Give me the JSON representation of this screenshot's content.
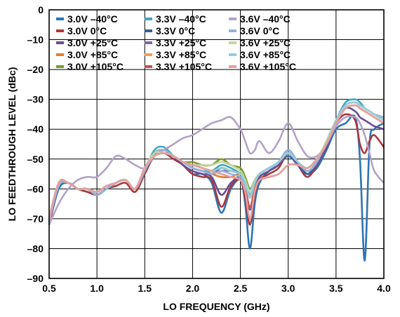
{
  "chart_data": {
    "type": "line",
    "title": "",
    "xlabel": "LO FREQUENCY (GHz)",
    "ylabel": "LO FEEDTHROUGH LEVEL (dBc)",
    "xlim": [
      0.5,
      4.0
    ],
    "ylim": [
      -90,
      0
    ],
    "xticks": [
      "0.5",
      "1.0",
      "1.5",
      "2.0",
      "2.5",
      "3.0",
      "3.5",
      "4.0"
    ],
    "yticks": [
      "0",
      "–10",
      "–20",
      "–30",
      "–40",
      "–50",
      "–60",
      "–70",
      "–80",
      "–90"
    ],
    "grid": true,
    "legend_position": "top-left",
    "x": [
      0.5,
      0.6,
      0.7,
      0.8,
      0.9,
      1.0,
      1.1,
      1.2,
      1.3,
      1.4,
      1.5,
      1.6,
      1.7,
      1.8,
      1.9,
      2.0,
      2.1,
      2.2,
      2.3,
      2.4,
      2.5,
      2.55,
      2.6,
      2.65,
      2.7,
      2.8,
      2.9,
      3.0,
      3.1,
      3.2,
      3.3,
      3.4,
      3.5,
      3.6,
      3.7,
      3.75,
      3.8,
      3.85,
      3.9,
      4.0
    ],
    "series": [
      {
        "name": "3.0V –40°C",
        "color": "#2e74b5",
        "values": [
          -72,
          -60,
          -58,
          -60,
          -61,
          -62,
          -60,
          -58,
          -57,
          -60,
          -54,
          -48,
          -47,
          -49,
          -52,
          -55,
          -55,
          -58,
          -68,
          -60,
          -57,
          -65,
          -80,
          -65,
          -58,
          -54,
          -52,
          -49,
          -52,
          -55,
          -53,
          -47,
          -40,
          -38,
          -36,
          -50,
          -84,
          -45,
          -40,
          -38
        ]
      },
      {
        "name": "3.0V 0°C",
        "color": "#a8383b",
        "values": [
          -72,
          -59,
          -58,
          -60,
          -61,
          -62,
          -60,
          -59,
          -58,
          -61,
          -55,
          -49,
          -48,
          -50,
          -52,
          -55,
          -56,
          -57,
          -66,
          -59,
          -57,
          -63,
          -72,
          -62,
          -57,
          -55,
          -53,
          -48,
          -52,
          -56,
          -52,
          -45,
          -38,
          -35,
          -37,
          -45,
          -48,
          -44,
          -42,
          -46
        ]
      },
      {
        "name": "3.0V +25°C",
        "color": "#6a4c93",
        "values": [
          -71,
          -58,
          -58,
          -60,
          -60,
          -62,
          -60,
          -58,
          -57,
          -60,
          -54,
          -49,
          -47,
          -49,
          -52,
          -54,
          -55,
          -56,
          -62,
          -58,
          -56,
          -60,
          -67,
          -60,
          -56,
          -54,
          -52,
          -48,
          -52,
          -55,
          -52,
          -46,
          -38,
          -33,
          -34,
          -36,
          -37,
          -38,
          -39,
          -40
        ]
      },
      {
        "name": "3.0V +85°C",
        "color": "#e47b2c",
        "values": [
          -70,
          -58,
          -58,
          -60,
          -60,
          -61,
          -59,
          -58,
          -57,
          -60,
          -53,
          -49,
          -48,
          -49,
          -51,
          -53,
          -54,
          -55,
          -56,
          -56,
          -55,
          -58,
          -62,
          -58,
          -55,
          -53,
          -51,
          -48,
          -51,
          -53,
          -50,
          -45,
          -38,
          -33,
          -32,
          -33,
          -34,
          -35,
          -36,
          -38
        ]
      },
      {
        "name": "3.0V +105°C",
        "color": "#7d9a2b",
        "values": [
          -70,
          -58,
          -58,
          -60,
          -60,
          -61,
          -59,
          -58,
          -57,
          -60,
          -53,
          -48,
          -48,
          -49,
          -51,
          -51,
          -52,
          -52,
          -50,
          -52,
          -53,
          -56,
          -60,
          -57,
          -55,
          -53,
          -51,
          -48,
          -51,
          -53,
          -50,
          -44,
          -37,
          -32,
          -31,
          -32,
          -33,
          -34,
          -35,
          -37
        ]
      },
      {
        "name": "3.3V –40°C",
        "color": "#3ea6c4",
        "values": [
          -71,
          -59,
          -58,
          -60,
          -60,
          -62,
          -60,
          -58,
          -57,
          -60,
          -54,
          -47,
          -46,
          -49,
          -51,
          -53,
          -54,
          -54,
          -52,
          -53,
          -55,
          -58,
          -60,
          -58,
          -55,
          -53,
          -51,
          -47,
          -51,
          -54,
          -51,
          -44,
          -37,
          -31,
          -30,
          -31,
          -33,
          -34,
          -35,
          -36
        ]
      },
      {
        "name": "3.3V 0°C",
        "color": "#365f91",
        "values": [
          -71,
          -58,
          -58,
          -60,
          -60,
          -62,
          -60,
          -58,
          -57,
          -60,
          -54,
          -48,
          -47,
          -49,
          -51,
          -53,
          -54,
          -55,
          -53,
          -54,
          -55,
          -58,
          -61,
          -58,
          -55,
          -53,
          -51,
          -47,
          -51,
          -55,
          -51,
          -45,
          -37,
          -32,
          -31,
          -32,
          -33,
          -34,
          -35,
          -37
        ]
      },
      {
        "name": "3.3V +25°C",
        "color": "#8064a2",
        "values": [
          -71,
          -58,
          -58,
          -60,
          -60,
          -62,
          -60,
          -58,
          -57,
          -60,
          -54,
          -48,
          -47,
          -49,
          -51,
          -53,
          -54,
          -55,
          -54,
          -54,
          -55,
          -58,
          -62,
          -58,
          -55,
          -53,
          -51,
          -47,
          -51,
          -54,
          -51,
          -45,
          -37,
          -32,
          -31,
          -32,
          -33,
          -34,
          -35,
          -37
        ]
      },
      {
        "name": "3.3V +85°C",
        "color": "#f59d56",
        "values": [
          -70,
          -58,
          -58,
          -60,
          -60,
          -61,
          -59,
          -58,
          -57,
          -60,
          -53,
          -49,
          -48,
          -49,
          -51,
          -52,
          -53,
          -54,
          -53,
          -54,
          -55,
          -58,
          -63,
          -58,
          -55,
          -53,
          -51,
          -48,
          -51,
          -53,
          -50,
          -45,
          -37,
          -32,
          -31,
          -32,
          -33,
          -34,
          -35,
          -37
        ]
      },
      {
        "name": "3.3V +105°C",
        "color": "#c0504d",
        "values": [
          -70,
          -58,
          -58,
          -60,
          -60,
          -61,
          -59,
          -58,
          -57,
          -60,
          -53,
          -49,
          -48,
          -49,
          -51,
          -52,
          -53,
          -54,
          -55,
          -56,
          -57,
          -60,
          -66,
          -60,
          -57,
          -56,
          -55,
          -52,
          -52,
          -53,
          -50,
          -45,
          -38,
          -33,
          -32,
          -33,
          -34,
          -35,
          -36,
          -38
        ]
      },
      {
        "name": "3.6V –40°C",
        "color": "#b3a2c7",
        "values": [
          -72,
          -65,
          -60,
          -57,
          -56,
          -56,
          -53,
          -49,
          -50,
          -52,
          -53,
          -49,
          -47,
          -45,
          -43,
          -42,
          -40,
          -38,
          -37,
          -36,
          -40,
          -44,
          -48,
          -47,
          -44,
          -48,
          -44,
          -38,
          -44,
          -49,
          -49,
          -45,
          -39,
          -36,
          -36,
          -38,
          -42,
          -48,
          -54,
          -58
        ]
      },
      {
        "name": "3.6V 0°C",
        "color": "#95b3d7",
        "values": [
          -71,
          -59,
          -58,
          -60,
          -60,
          -62,
          -60,
          -58,
          -57,
          -60,
          -54,
          -48,
          -47,
          -49,
          -51,
          -53,
          -54,
          -55,
          -54,
          -55,
          -56,
          -59,
          -62,
          -58,
          -55,
          -53,
          -51,
          -47,
          -51,
          -54,
          -51,
          -44,
          -37,
          -32,
          -31,
          -32,
          -33,
          -34,
          -35,
          -36
        ]
      },
      {
        "name": "3.6V +25°C",
        "color": "#c3d69b",
        "values": [
          -70,
          -58,
          -58,
          -60,
          -60,
          -61,
          -59,
          -58,
          -57,
          -60,
          -53,
          -48,
          -48,
          -49,
          -51,
          -52,
          -52,
          -52,
          -51,
          -52,
          -54,
          -57,
          -61,
          -57,
          -55,
          -53,
          -51,
          -48,
          -51,
          -53,
          -50,
          -44,
          -37,
          -32,
          -31,
          -32,
          -33,
          -34,
          -35,
          -37
        ]
      },
      {
        "name": "3.6V +85°C",
        "color": "#93cddd",
        "values": [
          -70,
          -58,
          -58,
          -60,
          -60,
          -61,
          -59,
          -58,
          -57,
          -60,
          -53,
          -49,
          -48,
          -49,
          -51,
          -52,
          -53,
          -54,
          -53,
          -54,
          -55,
          -58,
          -63,
          -58,
          -55,
          -53,
          -51,
          -48,
          -51,
          -53,
          -50,
          -45,
          -37,
          -32,
          -31,
          -32,
          -33,
          -34,
          -35,
          -37
        ]
      },
      {
        "name": "3.6V +105°C",
        "color": "#e6a0a0",
        "values": [
          -70,
          -58,
          -58,
          -60,
          -60,
          -61,
          -59,
          -58,
          -57,
          -60,
          -53,
          -49,
          -48,
          -49,
          -51,
          -52,
          -53,
          -54,
          -55,
          -56,
          -57,
          -61,
          -70,
          -61,
          -57,
          -56,
          -55,
          -52,
          -52,
          -53,
          -50,
          -45,
          -38,
          -33,
          -32,
          -33,
          -34,
          -35,
          -36,
          -38
        ]
      }
    ]
  }
}
